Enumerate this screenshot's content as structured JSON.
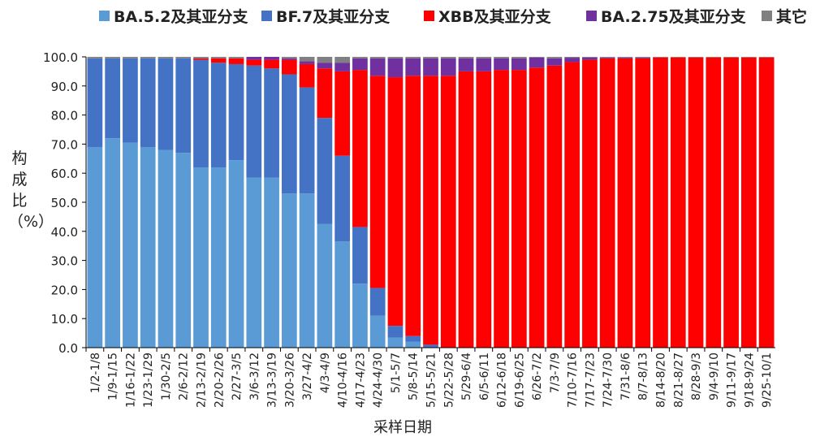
{
  "chart_data": {
    "type": "bar",
    "stacked": true,
    "ylabel": "构成比（%）",
    "xlabel": "采样日期",
    "ylim": [
      0,
      100
    ],
    "yticks": [
      "0.0",
      "10.0",
      "20.0",
      "30.0",
      "40.0",
      "50.0",
      "60.0",
      "70.0",
      "80.0",
      "90.0",
      "100.0"
    ],
    "legend_position": "top",
    "categories": [
      "1/2-1/8",
      "1/9-1/15",
      "1/16-1/22",
      "1/23-1/29",
      "1/30-2/5",
      "2/6-2/12",
      "2/13-2/19",
      "2/20-2/26",
      "2/27-3/5",
      "3/6-3/12",
      "3/13-3/19",
      "3/20-3/26",
      "3/27-4/2",
      "4/3-4/9",
      "4/10-4/16",
      "4/17-4/23",
      "4/24-4/30",
      "5/1-5/7",
      "5/8-5/14",
      "5/15-5/21",
      "5/22-5/28",
      "5/29-6/4",
      "6/5-6/11",
      "6/12-6/18",
      "6/19-6/25",
      "6/26-7/2",
      "7/3-7/9",
      "7/10-7/16",
      "7/17-7/23",
      "7/24-7/30",
      "7/31-8/6",
      "8/7-8/13",
      "8/14-8/20",
      "8/21-8/27",
      "8/28-9/3",
      "9/4-9/10",
      "9/11-9/17",
      "9/18-9/24",
      "9/25-10/1"
    ],
    "series": [
      {
        "name": "BA.5.2及其亚分支",
        "color": "#5b9bd5",
        "values": [
          69,
          72,
          70.5,
          69,
          68,
          67,
          62,
          62,
          64.5,
          58.5,
          58.5,
          53,
          53,
          42.5,
          36.5,
          22,
          11,
          3.5,
          2,
          0,
          0,
          0,
          0,
          0,
          0,
          0,
          0,
          0,
          0,
          0,
          0,
          0,
          0,
          0,
          0,
          0,
          0,
          0,
          0
        ]
      },
      {
        "name": "BF.7及其亚分支",
        "color": "#4472c4",
        "values": [
          30.5,
          27.5,
          29,
          30.5,
          31.5,
          32.5,
          37,
          36,
          33,
          38.5,
          37.5,
          41,
          36.5,
          36.5,
          29.5,
          19.5,
          9.5,
          4,
          2,
          1,
          0,
          0,
          0,
          0,
          0,
          0,
          0,
          0,
          0,
          0,
          0,
          0,
          0,
          0,
          0,
          0,
          0,
          0,
          0
        ]
      },
      {
        "name": "XBB及其亚分支",
        "color": "#ff0000",
        "values": [
          0,
          0,
          0,
          0,
          0,
          0,
          0.5,
          1.5,
          2,
          2,
          3,
          5,
          8,
          17,
          29,
          54,
          73,
          85.5,
          89.5,
          92.5,
          93.5,
          95,
          95,
          95.5,
          95.5,
          96.3,
          97,
          98.2,
          99,
          99.5,
          99.5,
          99.5,
          99.8,
          99.8,
          99.8,
          99.8,
          99.8,
          99.8,
          99.8
        ]
      },
      {
        "name": "BA.2.75及其亚分支",
        "color": "#7030a0",
        "values": [
          0,
          0,
          0,
          0,
          0,
          0,
          0,
          0,
          0,
          1,
          1,
          0.5,
          1,
          2,
          3,
          4,
          6,
          6.5,
          6,
          6,
          6,
          4.5,
          4.5,
          4,
          4,
          3.5,
          2.5,
          1.5,
          0.8,
          0.3,
          0.3,
          0.3,
          0,
          0,
          0,
          0,
          0,
          0,
          0
        ]
      },
      {
        "name": "其它",
        "color": "#808080",
        "values": [
          0.5,
          0.5,
          0.5,
          0.5,
          0.5,
          0.5,
          0.5,
          0.5,
          0.5,
          0,
          0,
          0.5,
          1.5,
          2,
          2,
          0.5,
          0.5,
          0.5,
          0.5,
          0.5,
          0.5,
          0.5,
          0.5,
          0.5,
          0.5,
          0.2,
          0.5,
          0.3,
          0.2,
          0.2,
          0.2,
          0.2,
          0.2,
          0.2,
          0.2,
          0.2,
          0.2,
          0.2,
          0.2
        ]
      }
    ]
  }
}
